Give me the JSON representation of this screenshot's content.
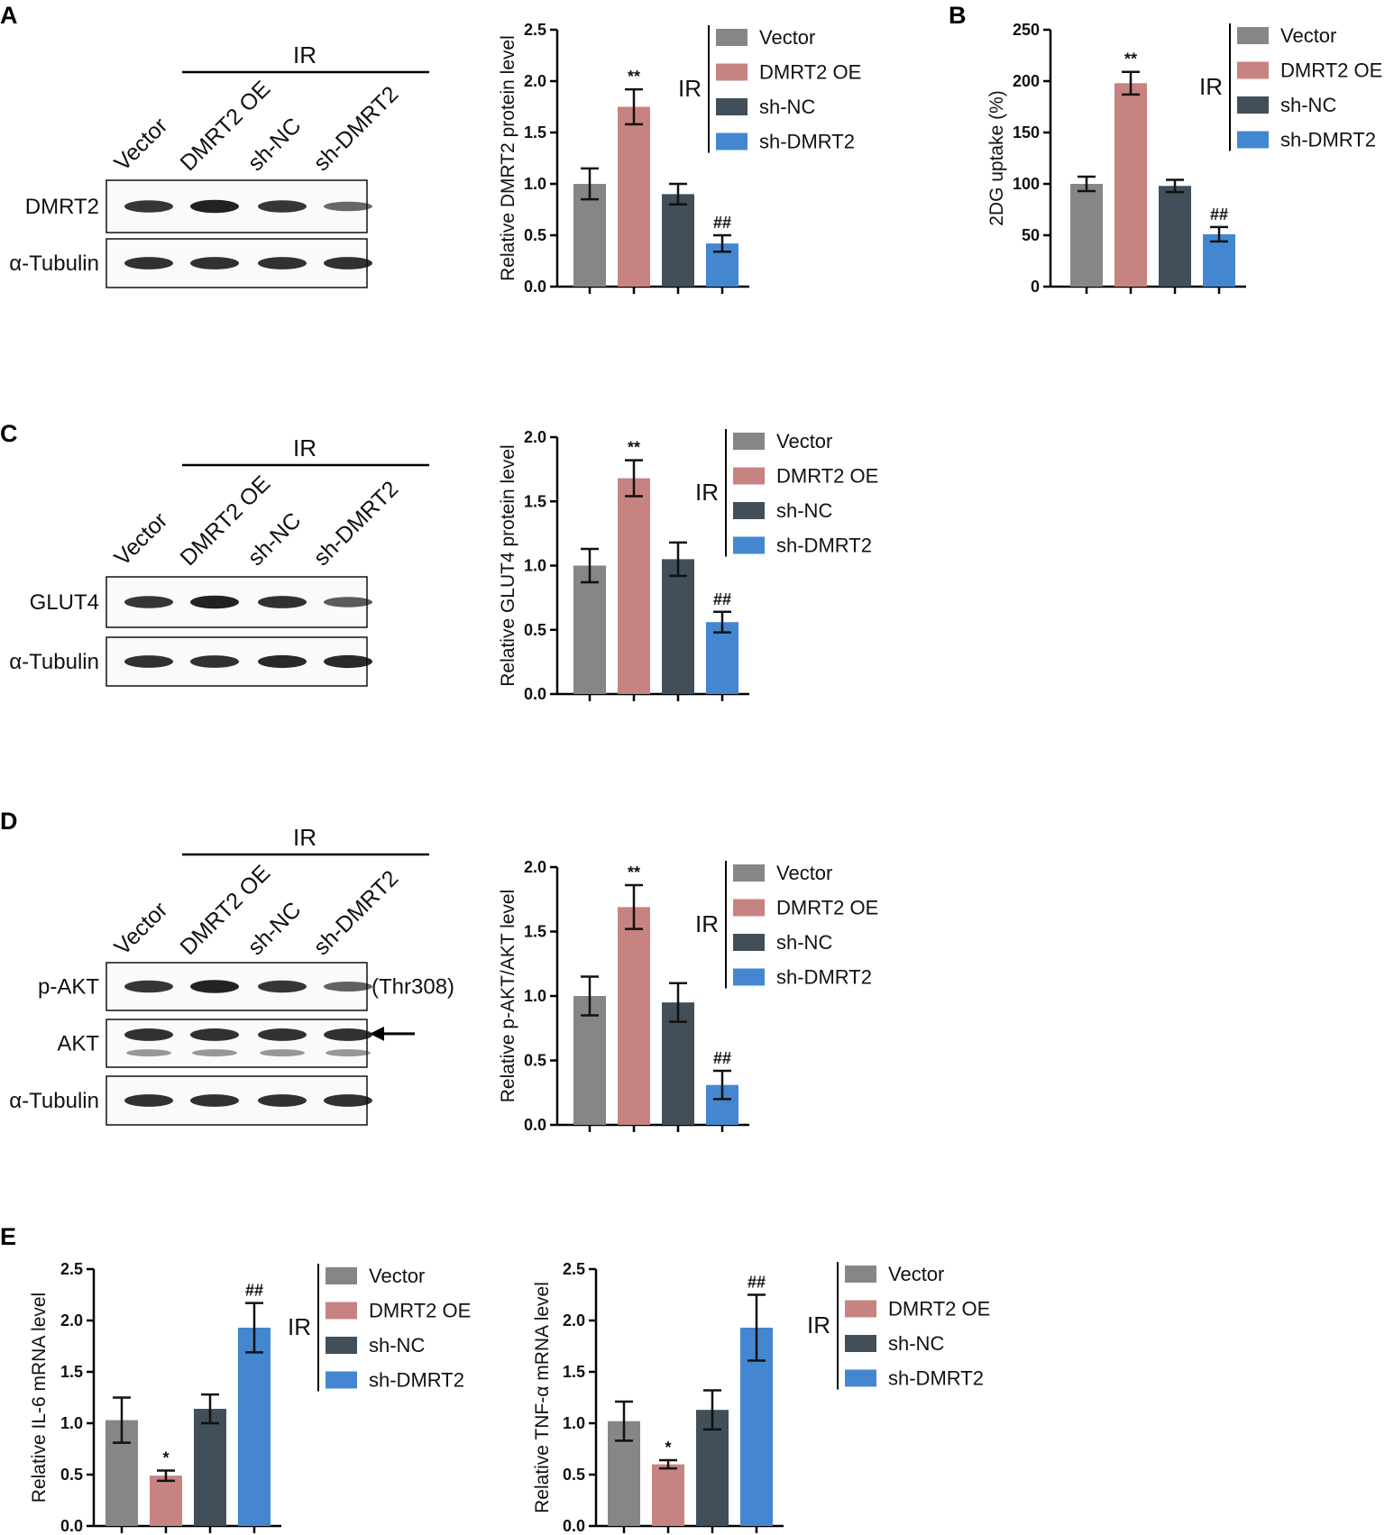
{
  "colors": {
    "Vector": "#868686",
    "DMRT2 OE": "#c78381",
    "sh-NC": "#404f5a",
    "sh-DMRT2": "#4487d0"
  },
  "legend": {
    "group": "IR",
    "items": [
      "Vector",
      "DMRT2 OE",
      "sh-NC",
      "sh-DMRT2"
    ]
  },
  "blots": [
    {
      "panel": "A",
      "ir": "IR",
      "lanes": [
        "Vector",
        "DMRT2 OE",
        "sh-NC",
        "sh-DMRT2"
      ],
      "rows": [
        {
          "label": "DMRT2",
          "intensity": [
            0.8,
            0.95,
            0.8,
            0.45
          ]
        },
        {
          "label": "α-Tubulin",
          "intensity": [
            0.85,
            0.85,
            0.85,
            0.85
          ]
        }
      ]
    },
    {
      "panel": "C",
      "ir": "IR",
      "lanes": [
        "Vector",
        "DMRT2 OE",
        "sh-NC",
        "sh-DMRT2"
      ],
      "rows": [
        {
          "label": "GLUT4",
          "intensity": [
            0.8,
            0.95,
            0.85,
            0.55
          ]
        },
        {
          "label": "α-Tubulin",
          "intensity": [
            0.85,
            0.85,
            0.9,
            0.9
          ]
        }
      ]
    },
    {
      "panel": "D",
      "ir": "IR",
      "lanes": [
        "Vector",
        "DMRT2 OE",
        "sh-NC",
        "sh-DMRT2"
      ],
      "annotation": "(Thr308)",
      "rows": [
        {
          "label": "p-AKT",
          "intensity": [
            0.8,
            0.95,
            0.8,
            0.5
          ]
        },
        {
          "label": "AKT",
          "intensity": [
            0.85,
            0.85,
            0.85,
            0.85
          ]
        },
        {
          "label": "α-Tubulin",
          "intensity": [
            0.85,
            0.85,
            0.85,
            0.85
          ]
        }
      ]
    }
  ],
  "chart_data": [
    {
      "panel": "A",
      "type": "bar",
      "categories": [
        "Vector",
        "DMRT2 OE",
        "sh-NC",
        "sh-DMRT2"
      ],
      "values": [
        1.0,
        1.75,
        0.9,
        0.42
      ],
      "errors": [
        0.15,
        0.17,
        0.1,
        0.08
      ],
      "significance": [
        "",
        "**",
        "",
        "##"
      ],
      "ylabel": "Relative DMRT2 protein level",
      "ylim": [
        0,
        2.5
      ],
      "yticks": [
        "0.0",
        "0.5",
        "1.0",
        "1.5",
        "2.0",
        "2.5"
      ]
    },
    {
      "panel": "B",
      "type": "bar",
      "categories": [
        "Vector",
        "DMRT2 OE",
        "sh-NC",
        "sh-DMRT2"
      ],
      "values": [
        100,
        198,
        98,
        51
      ],
      "errors": [
        7,
        11,
        6,
        7
      ],
      "significance": [
        "",
        "**",
        "",
        "##"
      ],
      "ylabel": "2DG uptake (%)",
      "ylim": [
        0,
        250
      ],
      "yticks": [
        "0",
        "50",
        "100",
        "150",
        "200",
        "250"
      ]
    },
    {
      "panel": "C",
      "type": "bar",
      "categories": [
        "Vector",
        "DMRT2 OE",
        "sh-NC",
        "sh-DMRT2"
      ],
      "values": [
        1.0,
        1.68,
        1.05,
        0.56
      ],
      "errors": [
        0.13,
        0.14,
        0.13,
        0.08
      ],
      "significance": [
        "",
        "**",
        "",
        "##"
      ],
      "ylabel": "Relative GLUT4 protein level",
      "ylim": [
        0,
        2.0
      ],
      "yticks": [
        "0.0",
        "0.5",
        "1.0",
        "1.5",
        "2.0"
      ]
    },
    {
      "panel": "D",
      "type": "bar",
      "categories": [
        "Vector",
        "DMRT2 OE",
        "sh-NC",
        "sh-DMRT2"
      ],
      "values": [
        1.0,
        1.69,
        0.95,
        0.31
      ],
      "errors": [
        0.15,
        0.17,
        0.15,
        0.11
      ],
      "significance": [
        "",
        "**",
        "",
        "##"
      ],
      "ylabel": "Relative p-AKT/AKT level",
      "ylim": [
        0,
        2.0
      ],
      "yticks": [
        "0.0",
        "0.5",
        "1.0",
        "1.5",
        "2.0"
      ]
    },
    {
      "panel": "E",
      "type": "bar",
      "categories": [
        "Vector",
        "DMRT2 OE",
        "sh-NC",
        "sh-DMRT2"
      ],
      "values": [
        1.03,
        0.49,
        1.14,
        1.93
      ],
      "errors": [
        0.22,
        0.05,
        0.14,
        0.24
      ],
      "significance": [
        "",
        "*",
        "",
        "##"
      ],
      "ylabel": "Relative IL-6 mRNA level",
      "ylim": [
        0,
        2.5
      ],
      "yticks": [
        "0.0",
        "0.5",
        "1.0",
        "1.5",
        "2.0",
        "2.5"
      ]
    },
    {
      "panel": "E",
      "type": "bar",
      "categories": [
        "Vector",
        "DMRT2 OE",
        "sh-NC",
        "sh-DMRT2"
      ],
      "values": [
        1.02,
        0.6,
        1.13,
        1.93
      ],
      "errors": [
        0.19,
        0.04,
        0.19,
        0.32
      ],
      "significance": [
        "",
        "*",
        "",
        "##"
      ],
      "ylabel": "Relative TNF-α mRNA level",
      "ylim": [
        0,
        2.5
      ],
      "yticks": [
        "0.0",
        "0.5",
        "1.0",
        "1.5",
        "2.0",
        "2.5"
      ]
    }
  ]
}
